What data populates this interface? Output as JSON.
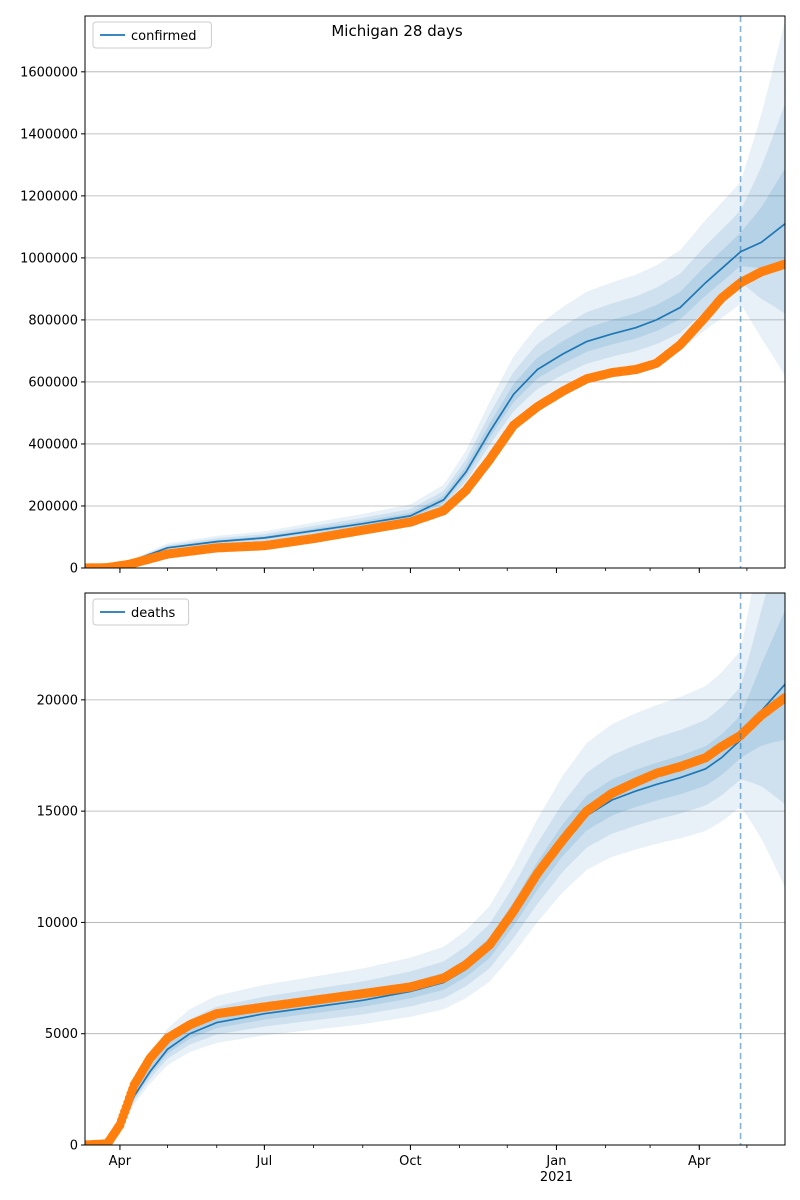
{
  "title": "Michigan 28 days",
  "chart_data": [
    {
      "type": "line",
      "panel": "top",
      "title": "Michigan 28 days",
      "xlabel": "",
      "ylabel": "",
      "ylim": [
        0,
        1780000
      ],
      "y_ticks": [
        0,
        200000,
        400000,
        600000,
        800000,
        1000000,
        1200000,
        1400000,
        1600000
      ],
      "grid": "horizontal",
      "legend": {
        "placement": "top-left",
        "entries": [
          "confirmed"
        ]
      },
      "forecast_start": "2021-04-27",
      "x": [
        "2020-03-10",
        "2020-03-24",
        "2020-04-07",
        "2020-05-01",
        "2020-06-01",
        "2020-07-01",
        "2020-08-01",
        "2020-09-01",
        "2020-10-01",
        "2020-10-22",
        "2020-11-05",
        "2020-11-20",
        "2020-12-05",
        "2020-12-20",
        "2021-01-05",
        "2021-01-20",
        "2021-02-05",
        "2021-02-20",
        "2021-03-05",
        "2021-03-20",
        "2021-04-05",
        "2021-04-15",
        "2021-04-27",
        "2021-05-10",
        "2021-05-25"
      ],
      "series": [
        {
          "name": "confirmed",
          "kind": "model-median",
          "color": "#1f77b4",
          "values": [
            0,
            2000,
            20000,
            65000,
            85000,
            97000,
            120000,
            143000,
            168000,
            220000,
            310000,
            440000,
            560000,
            640000,
            690000,
            730000,
            755000,
            775000,
            800000,
            840000,
            920000,
            965000,
            1020000,
            1050000,
            1110000
          ]
        },
        {
          "kind": "observed",
          "color": "#ff7f0e",
          "values": [
            0,
            1000,
            12000,
            45000,
            65000,
            72000,
            95000,
            122000,
            148000,
            185000,
            250000,
            350000,
            460000,
            520000,
            570000,
            610000,
            630000,
            640000,
            660000,
            720000,
            810000,
            870000,
            920000,
            955000,
            980000
          ]
        }
      ]
    },
    {
      "type": "line",
      "panel": "bottom",
      "xlabel": "",
      "ylabel": "",
      "ylim": [
        0,
        24800
      ],
      "y_ticks": [
        0,
        5000,
        10000,
        15000,
        20000
      ],
      "x_ticks": [
        "2020-04-01",
        "2020-07-01",
        "2020-10-01",
        "2021-01-01",
        "2021-04-01"
      ],
      "x_tick_labels": [
        "Apr",
        "Jul",
        "Oct",
        "Jan",
        "Apr"
      ],
      "x_secondary_label": "2021",
      "grid": "horizontal",
      "legend": {
        "placement": "top-left",
        "entries": [
          "deaths"
        ]
      },
      "forecast_start": "2021-04-27",
      "x": [
        "2020-03-10",
        "2020-03-24",
        "2020-04-01",
        "2020-04-10",
        "2020-04-20",
        "2020-05-01",
        "2020-05-15",
        "2020-06-01",
        "2020-07-01",
        "2020-08-01",
        "2020-09-01",
        "2020-10-01",
        "2020-10-22",
        "2020-11-05",
        "2020-11-20",
        "2020-12-05",
        "2020-12-20",
        "2021-01-05",
        "2021-01-20",
        "2021-02-05",
        "2021-02-20",
        "2021-03-05",
        "2021-03-20",
        "2021-04-05",
        "2021-04-15",
        "2021-04-27",
        "2021-05-10",
        "2021-05-25"
      ],
      "series": [
        {
          "name": "deaths",
          "kind": "model-median",
          "color": "#1f77b4",
          "values": [
            0,
            50,
            700,
            2200,
            3300,
            4300,
            5000,
            5500,
            5900,
            6200,
            6500,
            6900,
            7300,
            7900,
            8800,
            10300,
            12000,
            13600,
            14800,
            15500,
            15900,
            16200,
            16500,
            16900,
            17400,
            18200,
            19500,
            20700
          ]
        },
        {
          "kind": "observed",
          "color": "#ff7f0e",
          "values": [
            0,
            50,
            900,
            2700,
            3900,
            4800,
            5400,
            5900,
            6200,
            6500,
            6800,
            7100,
            7500,
            8100,
            9000,
            10500,
            12200,
            13700,
            15000,
            15800,
            16300,
            16700,
            17000,
            17400,
            17900,
            18400,
            19300,
            20100
          ]
        }
      ]
    }
  ]
}
